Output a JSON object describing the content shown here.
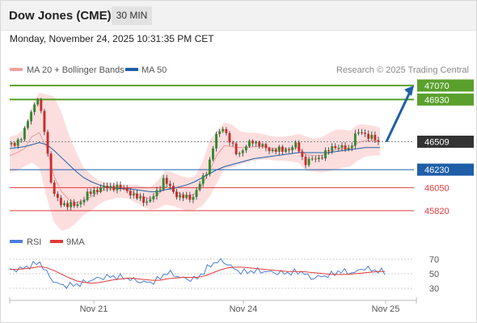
{
  "header": {
    "title": "Dow Jones (CME)",
    "timeframe": "30 MIN"
  },
  "datetime": "Monday, November 24, 2025 10:31:35 PM CET",
  "chart_data": [
    {
      "type": "candlestick",
      "legend": [
        {
          "label": "MA 20 + Bollinger Bands",
          "color": "#f4a0a0"
        },
        {
          "label": "MA 50",
          "color": "#1f5fa8"
        }
      ],
      "credit": "Research © 2025 Trading Central",
      "x_ticks": [
        "Nov 21",
        "Nov 24",
        "Nov 25"
      ],
      "y_range": [
        45650,
        47150
      ],
      "last_price": 46509,
      "levels": [
        {
          "value": 47070,
          "label": "47070",
          "kind": "target",
          "color": "#5aa02c"
        },
        {
          "value": 46930,
          "label": "46930",
          "kind": "target",
          "color": "#5aa02c"
        },
        {
          "value": 46509,
          "label": "46509",
          "kind": "current",
          "color": "#333333"
        },
        {
          "value": 46230,
          "label": "46230",
          "kind": "pivot",
          "color": "#1f5fa8"
        },
        {
          "value": 46050,
          "label": "46050",
          "kind": "support",
          "color": "#e03a3a"
        },
        {
          "value": 45820,
          "label": "45820",
          "kind": "support",
          "color": "#e03a3a"
        }
      ],
      "close_path": [
        46470,
        46500,
        46560,
        46800,
        46940,
        46600,
        46000,
        45900,
        45880,
        45870,
        45920,
        46000,
        46030,
        46050,
        46060,
        46050,
        46030,
        45960,
        45940,
        45900,
        46000,
        46130,
        46040,
        45960,
        45950,
        45960,
        46100,
        46250,
        46550,
        46660,
        46500,
        46380,
        46450,
        46520,
        46480,
        46430,
        46430,
        46420,
        46440,
        46480,
        46300,
        46330,
        46350,
        46400,
        46470,
        46450,
        46430,
        46600,
        46590,
        46560,
        46509
      ],
      "ma20_path": [
        46370,
        46400,
        46440,
        46560,
        46600,
        46450,
        46160,
        46010,
        45930,
        45900,
        45920,
        45960,
        46010,
        46030,
        46040,
        46040,
        46030,
        45990,
        45960,
        45940,
        45980,
        46060,
        46030,
        45990,
        45970,
        45990,
        46080,
        46220,
        46380,
        46470,
        46460,
        46450,
        46450,
        46460,
        46460,
        46450,
        46440,
        46440,
        46440,
        46450,
        46380,
        46370,
        46370,
        46390,
        46430,
        46440,
        46440,
        46500,
        46520,
        46520,
        46510
      ],
      "bb_upper_path": [
        46560,
        46580,
        46640,
        46860,
        47000,
        46980,
        46960,
        46800,
        46580,
        46400,
        46250,
        46180,
        46120,
        46100,
        46090,
        46080,
        46080,
        46080,
        46060,
        46050,
        46120,
        46220,
        46200,
        46170,
        46150,
        46160,
        46300,
        46520,
        46620,
        46700,
        46680,
        46620,
        46600,
        46600,
        46590,
        46570,
        46560,
        46560,
        46570,
        46590,
        46560,
        46540,
        46550,
        46590,
        46630,
        46630,
        46620,
        46680,
        46680,
        46670,
        46650
      ],
      "bb_lower_path": [
        46200,
        46220,
        46260,
        46300,
        46250,
        45950,
        45700,
        45620,
        45640,
        45700,
        45780,
        45820,
        45880,
        45920,
        45940,
        45950,
        45940,
        45900,
        45860,
        45830,
        45840,
        45880,
        45870,
        45840,
        45820,
        45830,
        45870,
        45960,
        46100,
        46240,
        46250,
        46280,
        46300,
        46320,
        46330,
        46330,
        46320,
        46320,
        46310,
        46300,
        46220,
        46210,
        46200,
        46210,
        46230,
        46250,
        46260,
        46320,
        46360,
        46370,
        46370
      ],
      "ma50_path": [
        46440,
        46450,
        46460,
        46480,
        46500,
        46480,
        46420,
        46350,
        46280,
        46210,
        46150,
        46110,
        46080,
        46060,
        46050,
        46040,
        46040,
        46030,
        46020,
        46010,
        46010,
        46030,
        46040,
        46060,
        46080,
        46110,
        46150,
        46190,
        46230,
        46260,
        46280,
        46300,
        46320,
        46340,
        46350,
        46360,
        46370,
        46380,
        46390,
        46400,
        46400,
        46400,
        46400,
        46400,
        46410,
        46420,
        46430,
        46440,
        46450,
        46450,
        46450
      ],
      "forecast_arrow": {
        "from": 46509,
        "to": 47070
      }
    },
    {
      "type": "line",
      "legend": [
        {
          "label": "RSI",
          "color": "#4a7fe0"
        },
        {
          "label": "9MA",
          "color": "#e03a3a"
        }
      ],
      "y_ticks": [
        "70",
        "50",
        "30"
      ],
      "y_range": [
        20,
        80
      ],
      "levels": [
        70,
        50,
        30
      ],
      "series": [
        {
          "name": "RSI",
          "values": [
            55,
            56,
            58,
            62,
            66,
            50,
            38,
            34,
            34,
            35,
            38,
            42,
            44,
            46,
            46,
            45,
            43,
            40,
            38,
            38,
            44,
            52,
            48,
            44,
            42,
            44,
            54,
            64,
            68,
            64,
            56,
            52,
            53,
            54,
            53,
            52,
            51,
            51,
            52,
            53,
            44,
            45,
            47,
            49,
            54,
            52,
            51,
            58,
            56,
            54,
            52
          ]
        },
        {
          "name": "9MA",
          "values": [
            56,
            56,
            57,
            58,
            60,
            58,
            54,
            49,
            44,
            40,
            38,
            37,
            38,
            40,
            42,
            43,
            44,
            43,
            42,
            41,
            41,
            43,
            44,
            45,
            45,
            45,
            47,
            51,
            55,
            58,
            59,
            59,
            58,
            57,
            56,
            55,
            54,
            53,
            53,
            53,
            52,
            51,
            50,
            49,
            49,
            49,
            50,
            51,
            52,
            53,
            53
          ]
        }
      ]
    }
  ]
}
